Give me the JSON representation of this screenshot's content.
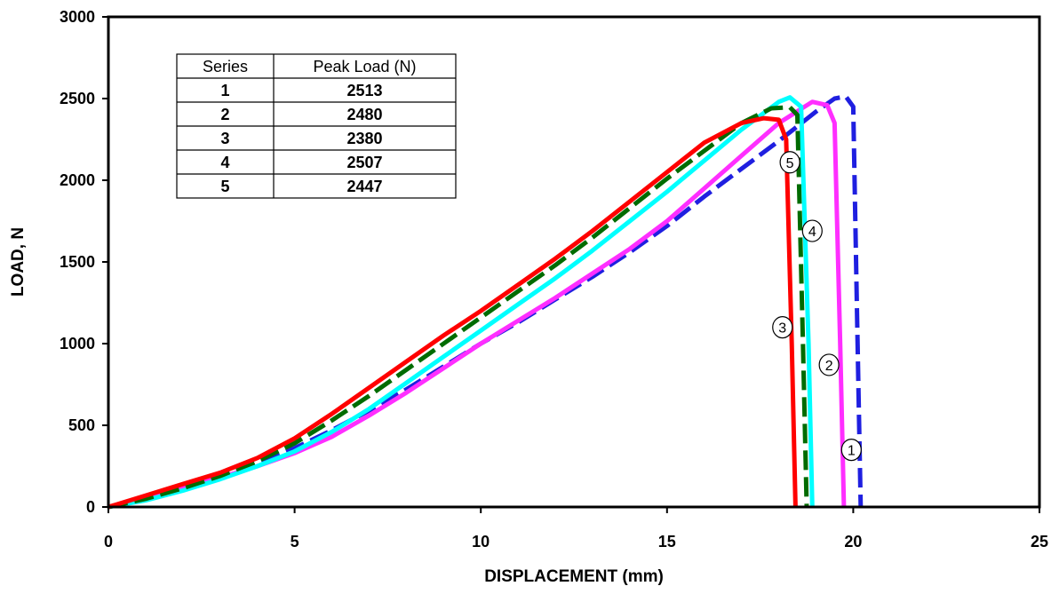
{
  "chart_data": {
    "type": "line",
    "xlabel": "DISPLACEMENT (mm)",
    "ylabel": "LOAD, N",
    "xlim": [
      0,
      25
    ],
    "ylim": [
      0,
      3000
    ],
    "x_ticks": [
      "0",
      "5",
      "10",
      "15",
      "20",
      "25"
    ],
    "y_ticks": [
      "0",
      "500",
      "1000",
      "1500",
      "2000",
      "2500",
      "3000"
    ],
    "grid": false,
    "legend": "none",
    "series": [
      {
        "name": "1",
        "color": "#1f1fe0",
        "style": "dashed",
        "x": [
          0,
          1,
          2,
          3,
          4,
          5,
          6,
          7,
          8,
          9,
          10,
          11,
          12,
          13,
          14,
          15,
          16,
          17,
          18,
          19,
          19.5,
          19.8,
          20.0,
          20.1,
          20.2
        ],
        "y": [
          0,
          50,
          110,
          190,
          270,
          360,
          470,
          590,
          720,
          860,
          1000,
          1130,
          1270,
          1410,
          1560,
          1720,
          1900,
          2070,
          2240,
          2420,
          2500,
          2513,
          2450,
          1200,
          0
        ]
      },
      {
        "name": "2",
        "color": "#ff2eff",
        "style": "solid",
        "x": [
          0,
          1,
          2,
          3,
          4,
          5,
          6,
          7,
          8,
          9,
          10,
          11,
          12,
          13,
          14,
          15,
          16,
          17,
          18,
          18.9,
          19.3,
          19.5,
          19.65,
          19.75
        ],
        "y": [
          0,
          60,
          120,
          180,
          250,
          330,
          430,
          560,
          700,
          850,
          1000,
          1140,
          1280,
          1430,
          1580,
          1750,
          1950,
          2150,
          2350,
          2480,
          2460,
          2350,
          1000,
          0
        ]
      },
      {
        "name": "3",
        "color": "#ff0000",
        "style": "solid",
        "x": [
          0,
          1,
          2,
          3,
          4,
          5,
          6,
          7,
          8,
          9,
          10,
          11,
          12,
          13,
          14,
          15,
          16,
          17,
          17.6,
          18.0,
          18.2,
          18.35,
          18.45
        ],
        "y": [
          0,
          70,
          140,
          210,
          300,
          420,
          570,
          730,
          890,
          1050,
          1200,
          1360,
          1520,
          1690,
          1870,
          2050,
          2230,
          2350,
          2380,
          2370,
          2250,
          1000,
          0
        ]
      },
      {
        "name": "4",
        "color": "#00ffff",
        "style": "solid",
        "x": [
          0,
          1,
          2,
          3,
          4,
          5,
          6,
          7,
          8,
          9,
          10,
          11,
          12,
          13,
          14,
          15,
          16,
          17,
          18,
          18.3,
          18.6,
          18.8,
          18.9
        ],
        "y": [
          0,
          40,
          100,
          170,
          250,
          340,
          460,
          600,
          760,
          920,
          1080,
          1240,
          1400,
          1570,
          1750,
          1930,
          2120,
          2310,
          2480,
          2507,
          2450,
          1000,
          0
        ]
      },
      {
        "name": "5",
        "color": "#006b00",
        "style": "dashed",
        "x": [
          0,
          1,
          2,
          3,
          4,
          5,
          6,
          7,
          8,
          9,
          10,
          11,
          12,
          13,
          14,
          15,
          16,
          17,
          17.8,
          18.3,
          18.5,
          18.65,
          18.75
        ],
        "y": [
          0,
          50,
          115,
          190,
          280,
          390,
          530,
          680,
          840,
          1000,
          1160,
          1320,
          1480,
          1650,
          1830,
          2010,
          2180,
          2350,
          2440,
          2447,
          2400,
          1000,
          0
        ]
      }
    ],
    "baseline": {
      "x_from": 1.5,
      "x_to": 20.2,
      "y": 0
    },
    "curve_markers": [
      {
        "label": "1",
        "x": 19.95,
        "y": 350
      },
      {
        "label": "2",
        "x": 19.35,
        "y": 870
      },
      {
        "label": "3",
        "x": 18.1,
        "y": 1100
      },
      {
        "label": "4",
        "x": 18.9,
        "y": 1690
      },
      {
        "label": "5",
        "x": 18.3,
        "y": 2110
      }
    ],
    "table": {
      "headers": [
        "Series",
        "Peak Load (N)"
      ],
      "rows": [
        [
          "1",
          "2513"
        ],
        [
          "2",
          "2480"
        ],
        [
          "3",
          "2380"
        ],
        [
          "4",
          "2507"
        ],
        [
          "5",
          "2447"
        ]
      ]
    }
  }
}
